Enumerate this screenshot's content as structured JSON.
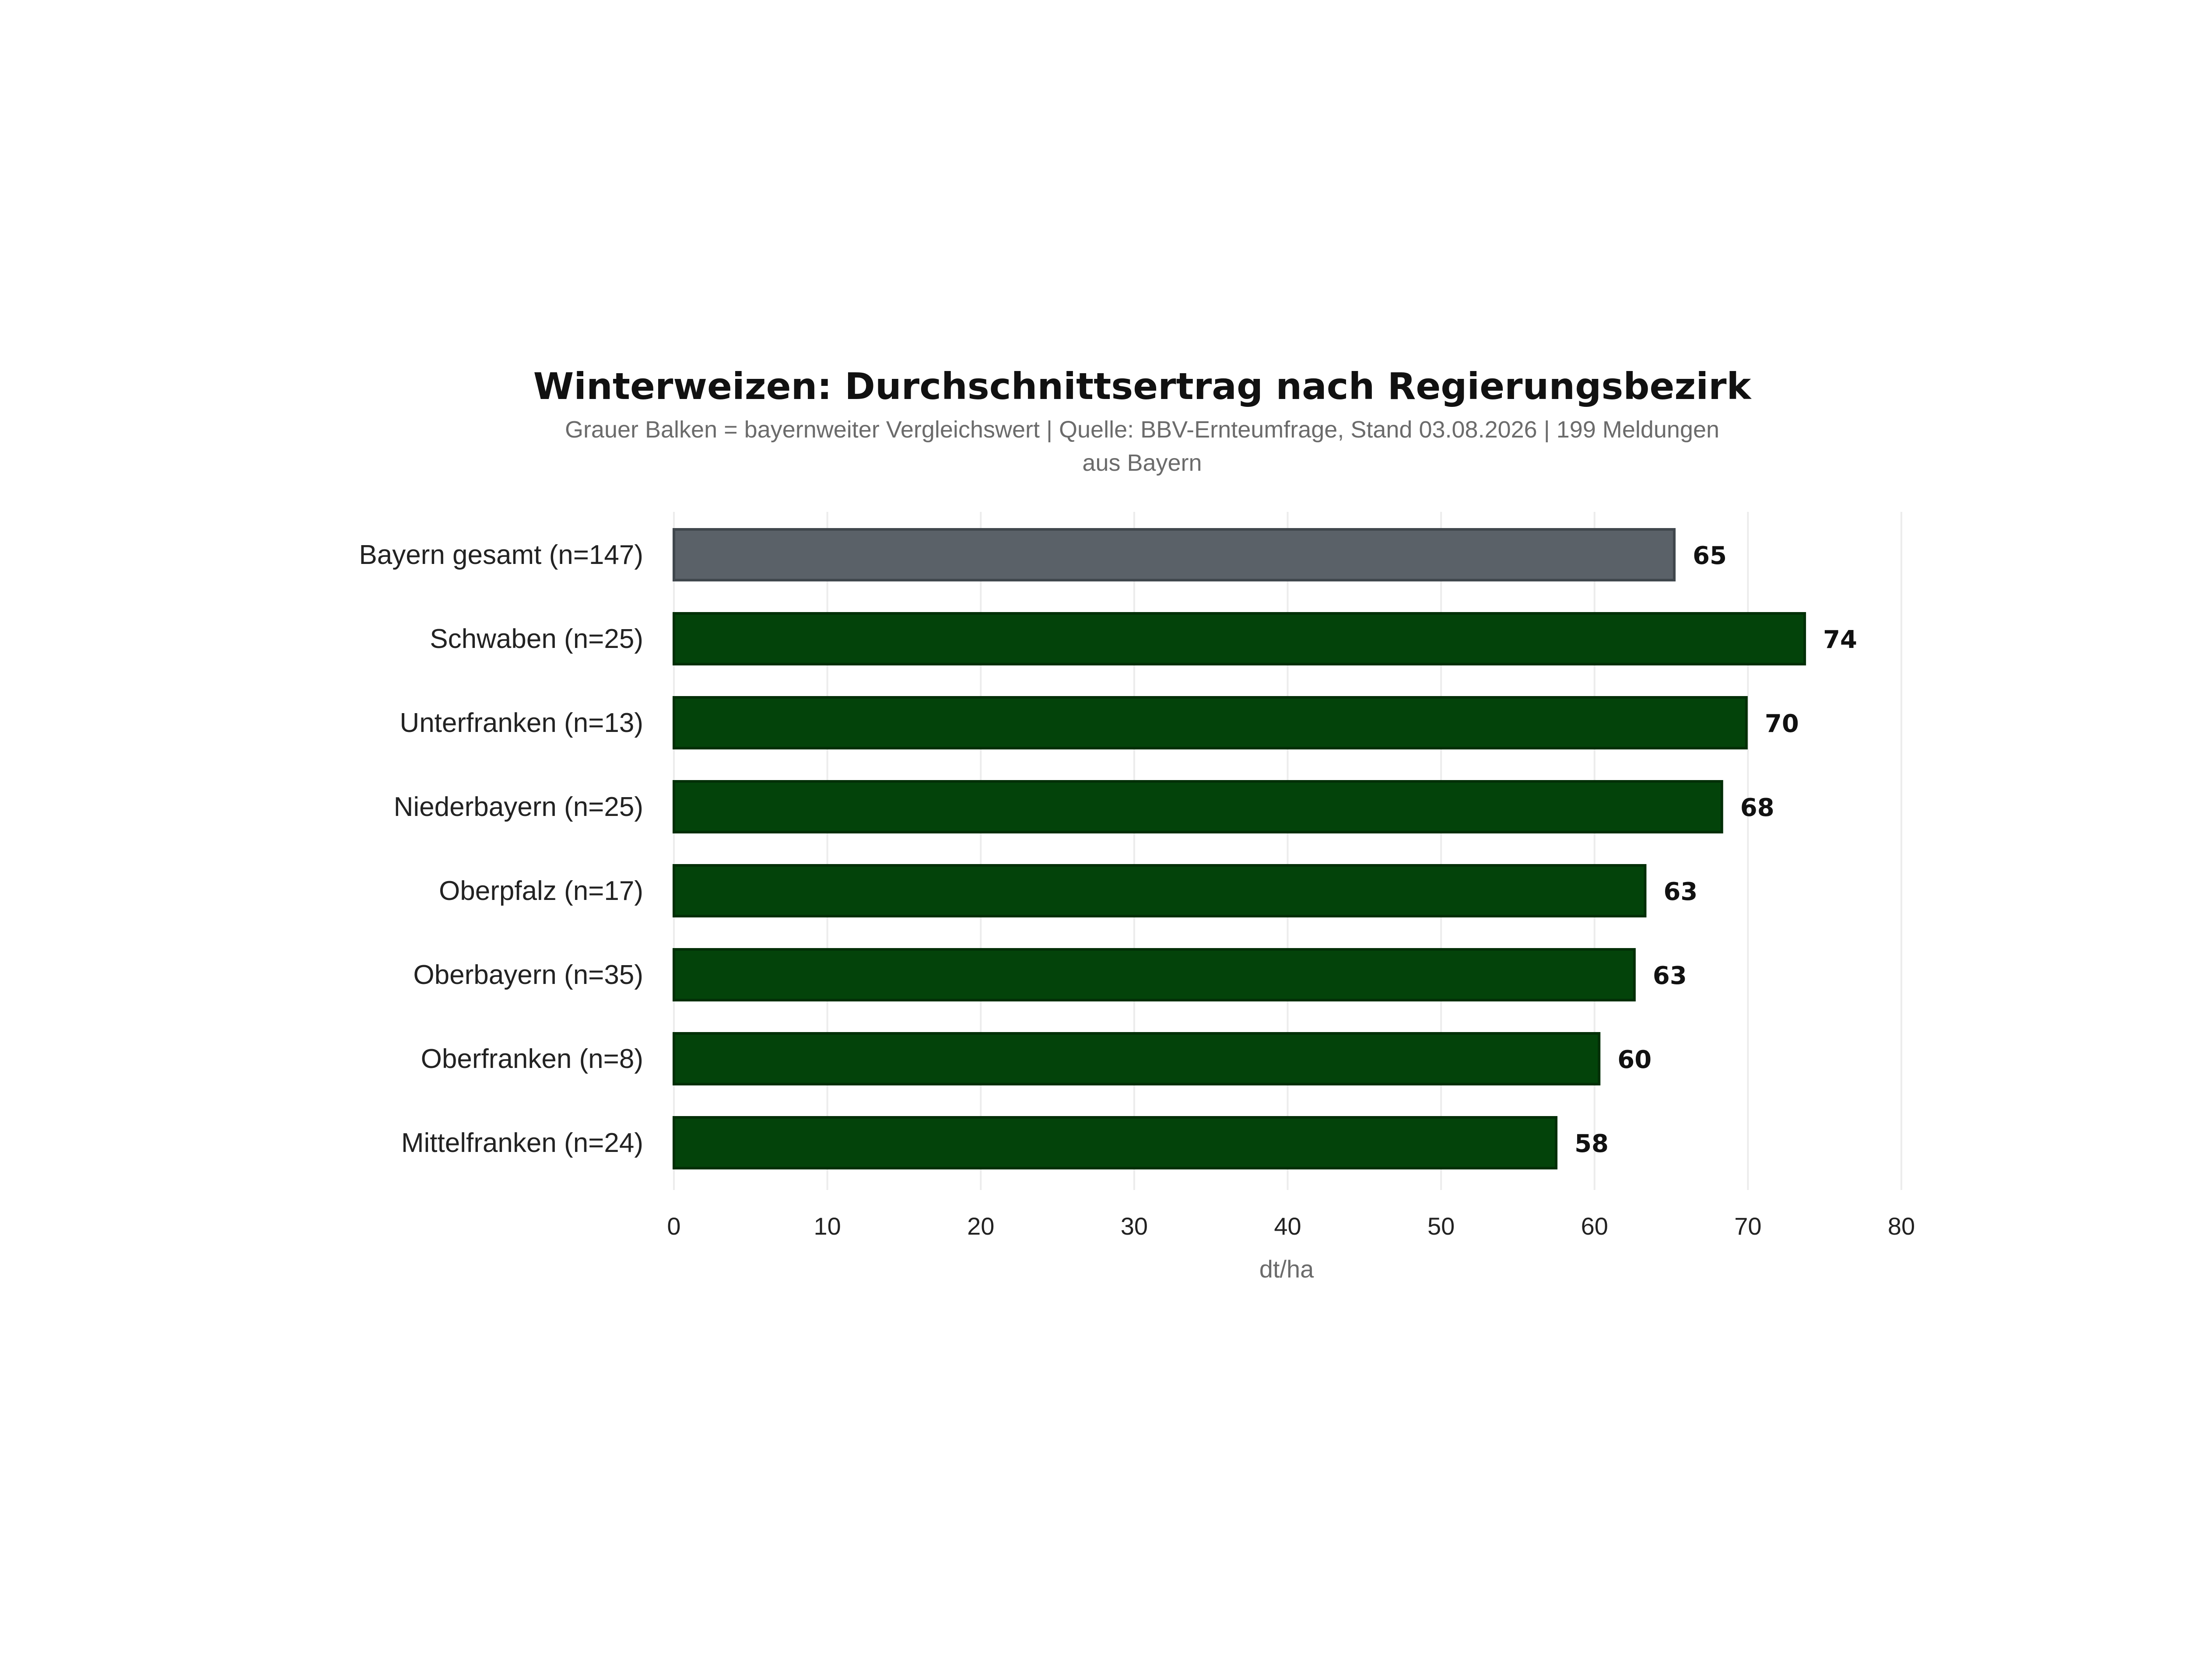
{
  "chart_data": {
    "type": "bar",
    "orientation": "horizontal",
    "title": "Winterweizen: Durchschnittsertrag nach Regierungsbezirk",
    "subtitle_lines": [
      "Grauer Balken = bayernweiter Vergleichswert  |  Quelle: BBV-Ernteumfrage, Stand 03.08.2026  |  199 Meldungen",
      "aus Bayern"
    ],
    "xlabel": "dt/ha",
    "ylabel": "",
    "xlim": [
      0,
      80
    ],
    "xticks": [
      0,
      10,
      20,
      30,
      40,
      50,
      60,
      70,
      80
    ],
    "grid": "vertical",
    "categories": [
      "Bayern gesamt (n=147)",
      "Schwaben (n=25)",
      "Unterfranken (n=13)",
      "Niederbayern (n=25)",
      "Oberpfalz (n=17)",
      "Oberbayern (n=35)",
      "Oberfranken (n=8)",
      "Mittelfranken (n=24)"
    ],
    "values": [
      65.2,
      73.7,
      69.9,
      68.3,
      63.3,
      62.6,
      60.3,
      57.5
    ],
    "value_labels": [
      "65",
      "74",
      "70",
      "68",
      "63",
      "63",
      "60",
      "58"
    ],
    "highlight": [
      "reference",
      "region",
      "region",
      "region",
      "region",
      "region",
      "region",
      "region"
    ],
    "colors": {
      "reference": "#5a6168",
      "region": "#03430a",
      "reference_border": "#40474d",
      "region_border": "#022f07"
    }
  }
}
